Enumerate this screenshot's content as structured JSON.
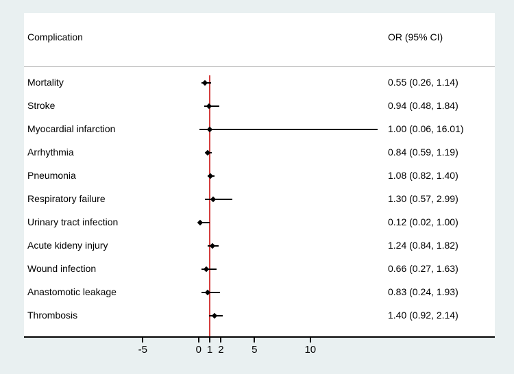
{
  "chart_data": {
    "type": "forest",
    "title": "",
    "columns": {
      "left_header": "Complication",
      "right_header": "OR (95% CI)"
    },
    "rows": [
      {
        "label": "Mortality",
        "or": 0.55,
        "ci_low": 0.26,
        "ci_high": 1.14,
        "or_text": "0.55 (0.26, 1.14)"
      },
      {
        "label": "Stroke",
        "or": 0.94,
        "ci_low": 0.48,
        "ci_high": 1.84,
        "or_text": "0.94 (0.48, 1.84)"
      },
      {
        "label": "Myocardial infarction",
        "or": 1.0,
        "ci_low": 0.06,
        "ci_high": 16.01,
        "or_text": "1.00 (0.06, 16.01)"
      },
      {
        "label": "Arrhythmia",
        "or": 0.84,
        "ci_low": 0.59,
        "ci_high": 1.19,
        "or_text": "0.84 (0.59, 1.19)"
      },
      {
        "label": "Pneumonia",
        "or": 1.08,
        "ci_low": 0.82,
        "ci_high": 1.4,
        "or_text": "1.08 (0.82, 1.40)"
      },
      {
        "label": "Respiratory failure",
        "or": 1.3,
        "ci_low": 0.57,
        "ci_high": 2.99,
        "or_text": "1.30 (0.57, 2.99)"
      },
      {
        "label": "Urinary tract infection",
        "or": 0.12,
        "ci_low": 0.02,
        "ci_high": 1.0,
        "or_text": "0.12 (0.02, 1.00)"
      },
      {
        "label": "Acute kideny injury",
        "or": 1.24,
        "ci_low": 0.84,
        "ci_high": 1.82,
        "or_text": "1.24 (0.84, 1.82)"
      },
      {
        "label": "Wound infection",
        "or": 0.66,
        "ci_low": 0.27,
        "ci_high": 1.63,
        "or_text": "0.66 (0.27, 1.63)"
      },
      {
        "label": "Anastomotic leakage",
        "or": 0.83,
        "ci_low": 0.24,
        "ci_high": 1.93,
        "or_text": "0.83 (0.24, 1.93)"
      },
      {
        "label": "Thrombosis",
        "or": 1.4,
        "ci_low": 0.92,
        "ci_high": 2.14,
        "or_text": "1.40 (0.92, 2.14)"
      }
    ],
    "x_ticks": [
      -5,
      0,
      1,
      2,
      5,
      10
    ],
    "reference_line_x": 1,
    "xlim": [
      -15.6,
      26.5
    ],
    "grid": false,
    "legend": "none",
    "colors": {
      "reference_line": "#d43d3d",
      "marker": "#000000",
      "axis": "#000000",
      "panel_background": "#ffffff",
      "figure_background": "#e9f0f1"
    }
  }
}
